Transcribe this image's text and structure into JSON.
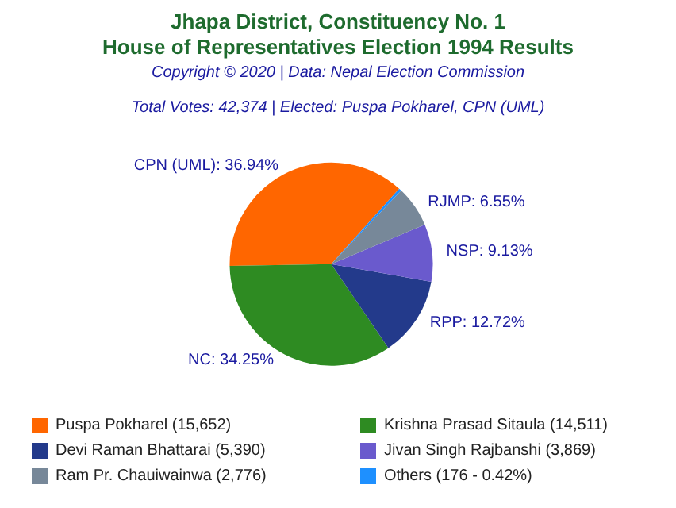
{
  "chart_data": {
    "type": "pie",
    "title": "Jhapa District, Constituency No. 1\nHouse of Representatives Election 1994 Results",
    "subtitle": "Copyright © 2020 | Data: Nepal Election Commission",
    "annotations": [
      "Total Votes: 42,374 | Elected: Puspa Pokharel, CPN (UML)"
    ],
    "categories": [
      "Puspa Pokharel (15,652)",
      "Krishna Prasad Sitaula (14,511)",
      "Devi Raman Bhattarai (5,390)",
      "Jivan Singh Rajbanshi (3,869)",
      "Ram Pr. Chauiwainwa (2,776)",
      "Others (176 - 0.42%)"
    ],
    "values": [
      36.94,
      34.25,
      12.72,
      9.13,
      6.55,
      0.42
    ],
    "colors": [
      "#ff6600",
      "#2e8b22",
      "#233a8b",
      "#6a5acd",
      "#778899",
      "#1e90ff"
    ],
    "value_labels": [
      "CPN (UML): 36.94%",
      "NC: 34.25%",
      "RPP: 12.72%",
      "NSP: 9.13%",
      "RJMP: 6.55%",
      null
    ],
    "legend": "bottom"
  }
}
